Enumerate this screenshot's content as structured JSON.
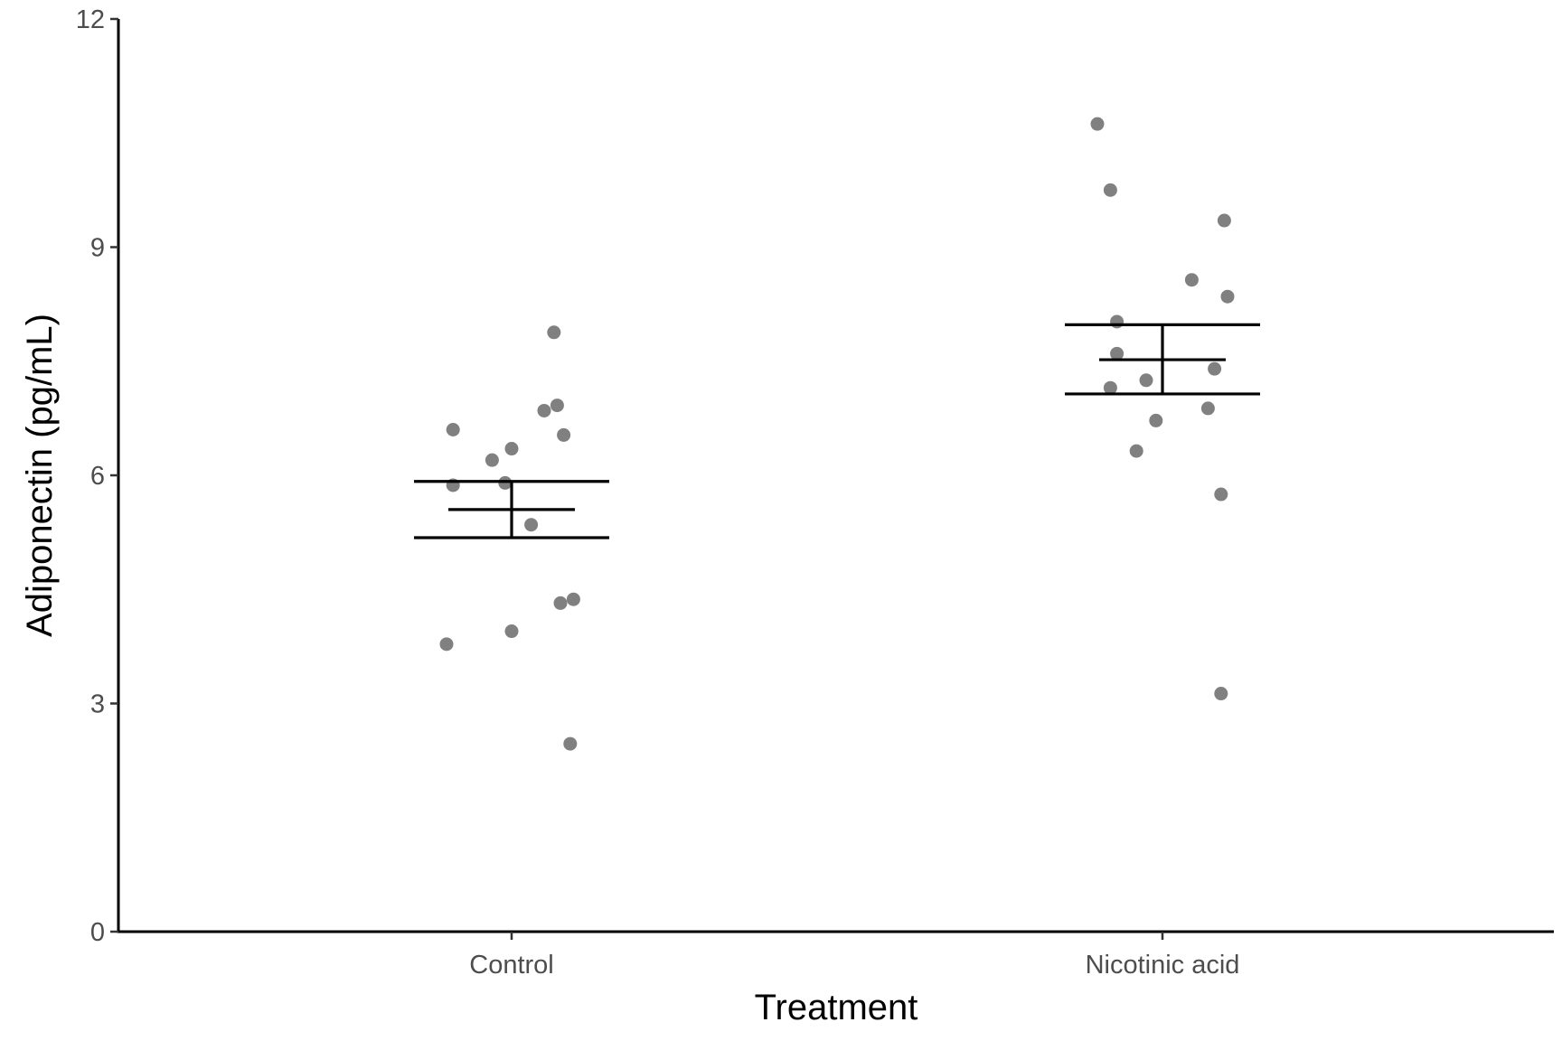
{
  "chart_data": {
    "type": "scatter",
    "xlabel": "Treatment",
    "ylabel": "Adiponectin (pg/mL)",
    "ylim": [
      0,
      12
    ],
    "yticks": [
      0,
      3,
      6,
      9,
      12
    ],
    "categories": [
      "Control",
      "Nicotinic acid"
    ],
    "grid": false,
    "colors": {
      "points": "#808080",
      "summary": "#000000",
      "axis": "#000000",
      "tick_text": "#4d4d4d"
    },
    "groups": [
      {
        "category": "Control",
        "mean": 5.55,
        "upper": 5.92,
        "lower": 5.18,
        "points": [
          {
            "jitter": -0.09,
            "y": 6.6
          },
          {
            "jitter": -0.09,
            "y": 5.87
          },
          {
            "jitter": -0.1,
            "y": 3.78
          },
          {
            "jitter": -0.03,
            "y": 6.2
          },
          {
            "jitter": 0.0,
            "y": 6.35
          },
          {
            "jitter": -0.01,
            "y": 5.9
          },
          {
            "jitter": 0.03,
            "y": 5.35
          },
          {
            "jitter": 0.0,
            "y": 3.95
          },
          {
            "jitter": 0.05,
            "y": 6.85
          },
          {
            "jitter": 0.065,
            "y": 7.88
          },
          {
            "jitter": 0.07,
            "y": 6.92
          },
          {
            "jitter": 0.08,
            "y": 6.53
          },
          {
            "jitter": 0.075,
            "y": 4.32
          },
          {
            "jitter": 0.095,
            "y": 4.37
          },
          {
            "jitter": 0.09,
            "y": 2.47
          }
        ]
      },
      {
        "category": "Nicotinic acid",
        "mean": 7.52,
        "upper": 7.98,
        "lower": 7.07,
        "points": [
          {
            "jitter": -0.1,
            "y": 10.62
          },
          {
            "jitter": -0.08,
            "y": 9.75
          },
          {
            "jitter": -0.07,
            "y": 8.02
          },
          {
            "jitter": -0.07,
            "y": 7.6
          },
          {
            "jitter": -0.08,
            "y": 7.15
          },
          {
            "jitter": -0.025,
            "y": 7.25
          },
          {
            "jitter": -0.04,
            "y": 6.32
          },
          {
            "jitter": -0.01,
            "y": 6.72
          },
          {
            "jitter": 0.045,
            "y": 8.57
          },
          {
            "jitter": 0.07,
            "y": 6.88
          },
          {
            "jitter": 0.08,
            "y": 7.4
          },
          {
            "jitter": 0.095,
            "y": 9.35
          },
          {
            "jitter": 0.1,
            "y": 8.35
          },
          {
            "jitter": 0.09,
            "y": 5.75
          },
          {
            "jitter": 0.09,
            "y": 3.13
          }
        ]
      }
    ]
  }
}
